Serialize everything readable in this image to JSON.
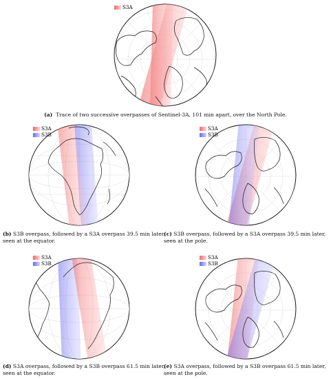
{
  "panels": [
    {
      "id": "a",
      "letter": "(a)",
      "caption": "Trace of two successive overpasses of Sentinel-3A, 101 min apart, over the North Pole.",
      "legend": [
        {
          "label": "S3A",
          "color": "#e03030"
        }
      ],
      "view": "pole"
    },
    {
      "id": "b",
      "letter": "(b)",
      "caption": "S3B overpass, followed by a S3A overpass 39.5 min later, seen at the equator.",
      "legend": [
        {
          "label": "S3A",
          "color": "#e03030"
        },
        {
          "label": "S3B",
          "color": "#3030e0"
        }
      ],
      "view": "equator"
    },
    {
      "id": "c",
      "letter": "(c)",
      "caption": "S3B overpass, followed by a S3A overpass 39.5 min later, seen at the pole.",
      "legend": [
        {
          "label": "S3A",
          "color": "#e03030"
        },
        {
          "label": "S3B",
          "color": "#3030e0"
        }
      ],
      "view": "pole"
    },
    {
      "id": "d",
      "letter": "(d)",
      "caption": "S3A overpass, followed by a S3B overpass 61.5 min later, seen at the equator.",
      "legend": [
        {
          "label": "S3A",
          "color": "#e03030"
        },
        {
          "label": "S3B",
          "color": "#3030e0"
        }
      ],
      "view": "equator"
    },
    {
      "id": "e",
      "letter": "(e)",
      "caption": "S3A overpass, followed by a S3B overpass 61.5 min later, seen at the pole.",
      "legend": [
        {
          "label": "S3A",
          "color": "#e03030"
        },
        {
          "label": "S3B",
          "color": "#3030e0"
        }
      ],
      "view": "pole"
    }
  ],
  "colors": {
    "s3a": "#e8383f",
    "s3b": "#3b3be8",
    "grid": "#c8c8c8",
    "coast": "#111111"
  }
}
